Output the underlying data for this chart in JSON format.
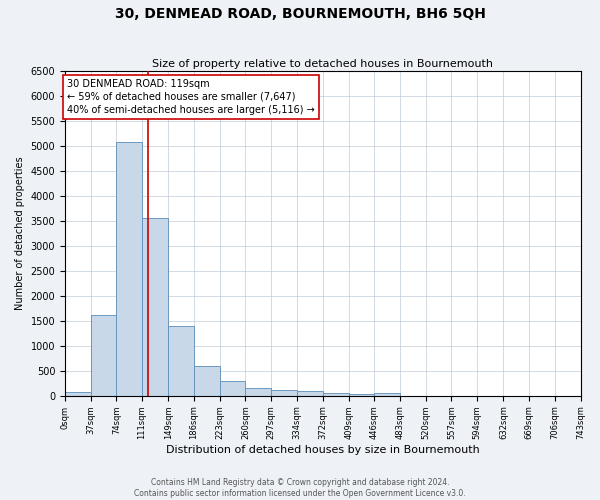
{
  "title": "30, DENMEAD ROAD, BOURNEMOUTH, BH6 5QH",
  "subtitle": "Size of property relative to detached houses in Bournemouth",
  "xlabel": "Distribution of detached houses by size in Bournemouth",
  "ylabel": "Number of detached properties",
  "bar_edges": [
    0,
    37,
    74,
    111,
    149,
    186,
    223,
    260,
    297,
    334,
    372,
    409,
    446,
    483,
    520,
    557,
    594,
    632,
    669,
    706,
    743
  ],
  "bar_heights": [
    75,
    1620,
    5080,
    3560,
    1400,
    590,
    300,
    155,
    115,
    90,
    50,
    35,
    50,
    0,
    0,
    0,
    0,
    0,
    0,
    0
  ],
  "bar_color": "#c8d8e8",
  "bar_edge_color": "#5b8db8",
  "property_line_x": 119,
  "property_line_color": "#cc0000",
  "ylim": [
    0,
    6500
  ],
  "yticks": [
    0,
    500,
    1000,
    1500,
    2000,
    2500,
    3000,
    3500,
    4000,
    4500,
    5000,
    5500,
    6000,
    6500
  ],
  "annotation_line1": "30 DENMEAD ROAD: 119sqm",
  "annotation_line2": "← 59% of detached houses are smaller (7,647)",
  "annotation_line3": "40% of semi-detached houses are larger (5,116) →",
  "annotation_box_color": "#cc0000",
  "footer_line1": "Contains HM Land Registry data © Crown copyright and database right 2024.",
  "footer_line2": "Contains public sector information licensed under the Open Government Licence v3.0.",
  "fig_bg_color": "#eef2f7",
  "plot_bg_color": "#ffffff",
  "grid_color": "#c0ccd8",
  "title_fontsize": 10,
  "subtitle_fontsize": 8,
  "xlabel_fontsize": 8,
  "ylabel_fontsize": 7,
  "ytick_fontsize": 7,
  "xtick_fontsize": 6,
  "annotation_fontsize": 7,
  "footer_fontsize": 5.5
}
